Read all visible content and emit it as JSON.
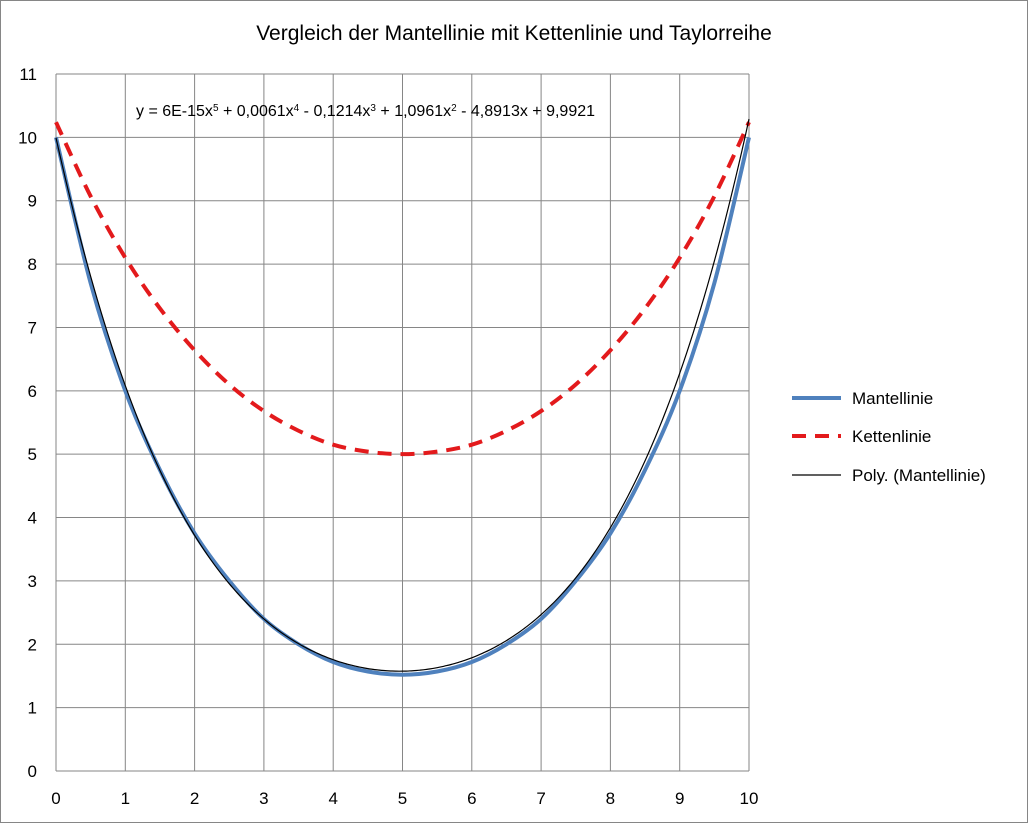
{
  "chart_data": {
    "type": "line",
    "title": "Vergleich der Mantellinie mit Kettenlinie und Taylorreihe",
    "xlabel": "",
    "ylabel": "",
    "xlim": [
      0,
      10
    ],
    "ylim": [
      0,
      11
    ],
    "x_ticks": [
      "0",
      "1",
      "2",
      "3",
      "4",
      "5",
      "6",
      "7",
      "8",
      "9",
      "10"
    ],
    "y_ticks": [
      "0",
      "1",
      "2",
      "3",
      "4",
      "5",
      "6",
      "7",
      "8",
      "9",
      "10",
      "11"
    ],
    "grid": true,
    "legend_position": "right",
    "trendline_equation": {
      "prefix": "y = 6E-15x",
      "e1": "5",
      "t2": " + 0,0061x",
      "e2": "4",
      "t3": " - 0,1214x",
      "e3": "3",
      "t4": " + 1,0961x",
      "e4": "2",
      "t5": " - 4,8913x + 9,9921"
    },
    "series": [
      {
        "name": "Mantellinie",
        "color": "#4f81bd",
        "style": "solid-thick",
        "x": [
          0,
          0.5,
          1,
          1.5,
          2,
          2.5,
          3,
          3.5,
          4,
          4.5,
          5,
          5.5,
          6,
          6.5,
          7,
          7.5,
          8,
          8.5,
          9,
          9.5,
          10
        ],
        "y": [
          10.0,
          7.7,
          6.0,
          4.75,
          3.75,
          3.0,
          2.4,
          2.0,
          1.72,
          1.57,
          1.52,
          1.57,
          1.72,
          2.0,
          2.4,
          3.0,
          3.75,
          4.75,
          6.0,
          7.7,
          10.0
        ]
      },
      {
        "name": "Kettenlinie",
        "color": "#e31a1c",
        "style": "dashed",
        "x": [
          0,
          0.5,
          1,
          1.5,
          2,
          2.5,
          3,
          3.5,
          4,
          4.5,
          5,
          5.5,
          6,
          6.5,
          7,
          7.5,
          8,
          8.5,
          9,
          9.5,
          10
        ],
        "y": [
          10.24,
          9.07,
          8.1,
          7.3,
          6.64,
          6.1,
          5.68,
          5.37,
          5.15,
          5.04,
          5.0,
          5.04,
          5.15,
          5.37,
          5.68,
          6.1,
          6.64,
          7.3,
          8.1,
          9.07,
          10.24
        ]
      },
      {
        "name": "Poly. (Mantellinie)",
        "color": "#000000",
        "style": "solid-thin",
        "polynomial": [
          9.9921,
          -4.8913,
          1.0961,
          -0.1214,
          0.0061,
          6e-15
        ]
      }
    ]
  }
}
